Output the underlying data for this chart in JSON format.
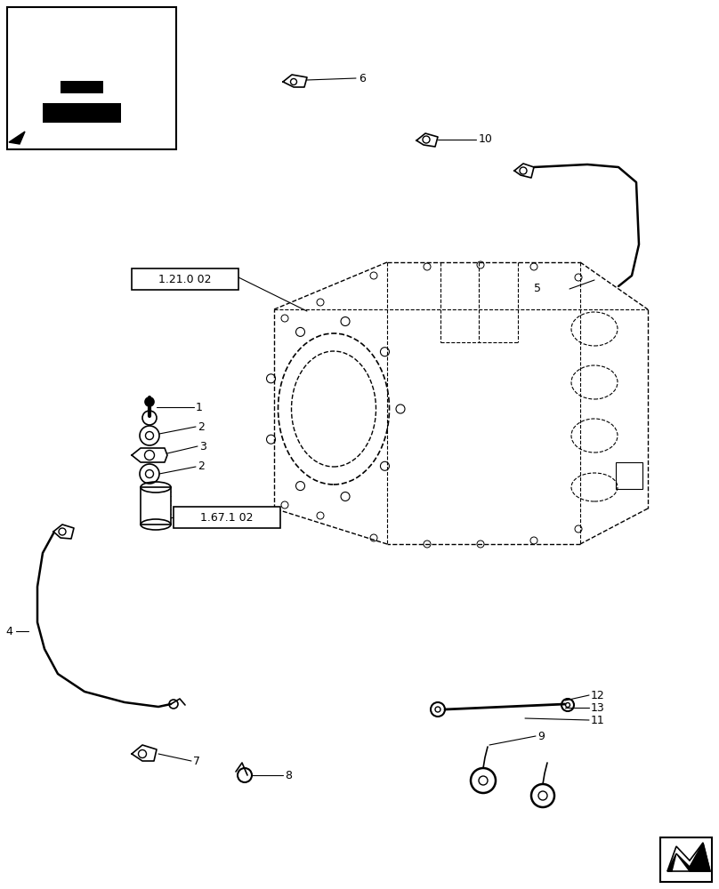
{
  "bg_color": "#ffffff",
  "line_color": "#000000",
  "figure_width": 8.08,
  "figure_height": 10.0,
  "dpi": 100
}
